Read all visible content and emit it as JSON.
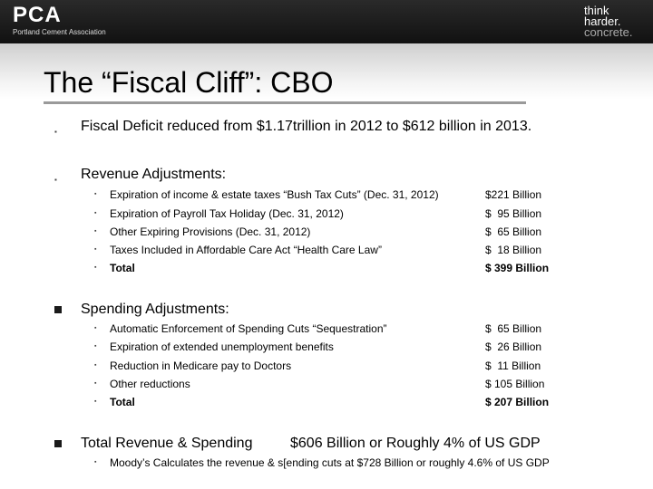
{
  "header": {
    "logo_mark": "PCA",
    "logo_subtitle": "Portland Cement Association",
    "tagline": [
      "think",
      "harder.",
      "concrete."
    ]
  },
  "slide": {
    "title": "The “Fiscal Cliff”: CBO",
    "points": {
      "deficit": "Fiscal Deficit reduced from $1.17trillion in 2012 to $612 billion in 2013.",
      "revenue_heading": "Revenue Adjustments:",
      "revenue_items": [
        {
          "label": "Expiration of income & estate taxes “Bush Tax Cuts” (Dec. 31, 2012)",
          "amount": "$221 Billion"
        },
        {
          "label": "Expiration of Payroll Tax Holiday (Dec. 31, 2012)",
          "amount": "$  95 Billion"
        },
        {
          "label": "Other Expiring Provisions (Dec. 31, 2012)",
          "amount": "$  65 Billion"
        },
        {
          "label": "Taxes Included in Affordable Care Act “Health Care Law”",
          "amount": "$  18 Billion"
        },
        {
          "label": "Total",
          "amount": "$ 399 Billion"
        }
      ],
      "spending_heading": "Spending Adjustments:",
      "spending_items": [
        {
          "label": "Automatic Enforcement of Spending Cuts “Sequestration”",
          "amount": "$  65 Billion"
        },
        {
          "label": "Expiration of extended unemployment benefits",
          "amount": "$  26 Billion"
        },
        {
          "label": "Reduction in Medicare pay to Doctors",
          "amount": "$  11 Billion"
        },
        {
          "label": "Other reductions",
          "amount": "$ 105 Billion"
        },
        {
          "label": "Total",
          "amount": "$ 207 Billion"
        }
      ],
      "total_heading": "Total Revenue & Spending",
      "total_value": "$606 Billion or Roughly 4% of US GDP",
      "moodys_note": "Moody’s Calculates the revenue & s[ending cuts at $728 Billion or roughly 4.6% of US GDP"
    }
  }
}
